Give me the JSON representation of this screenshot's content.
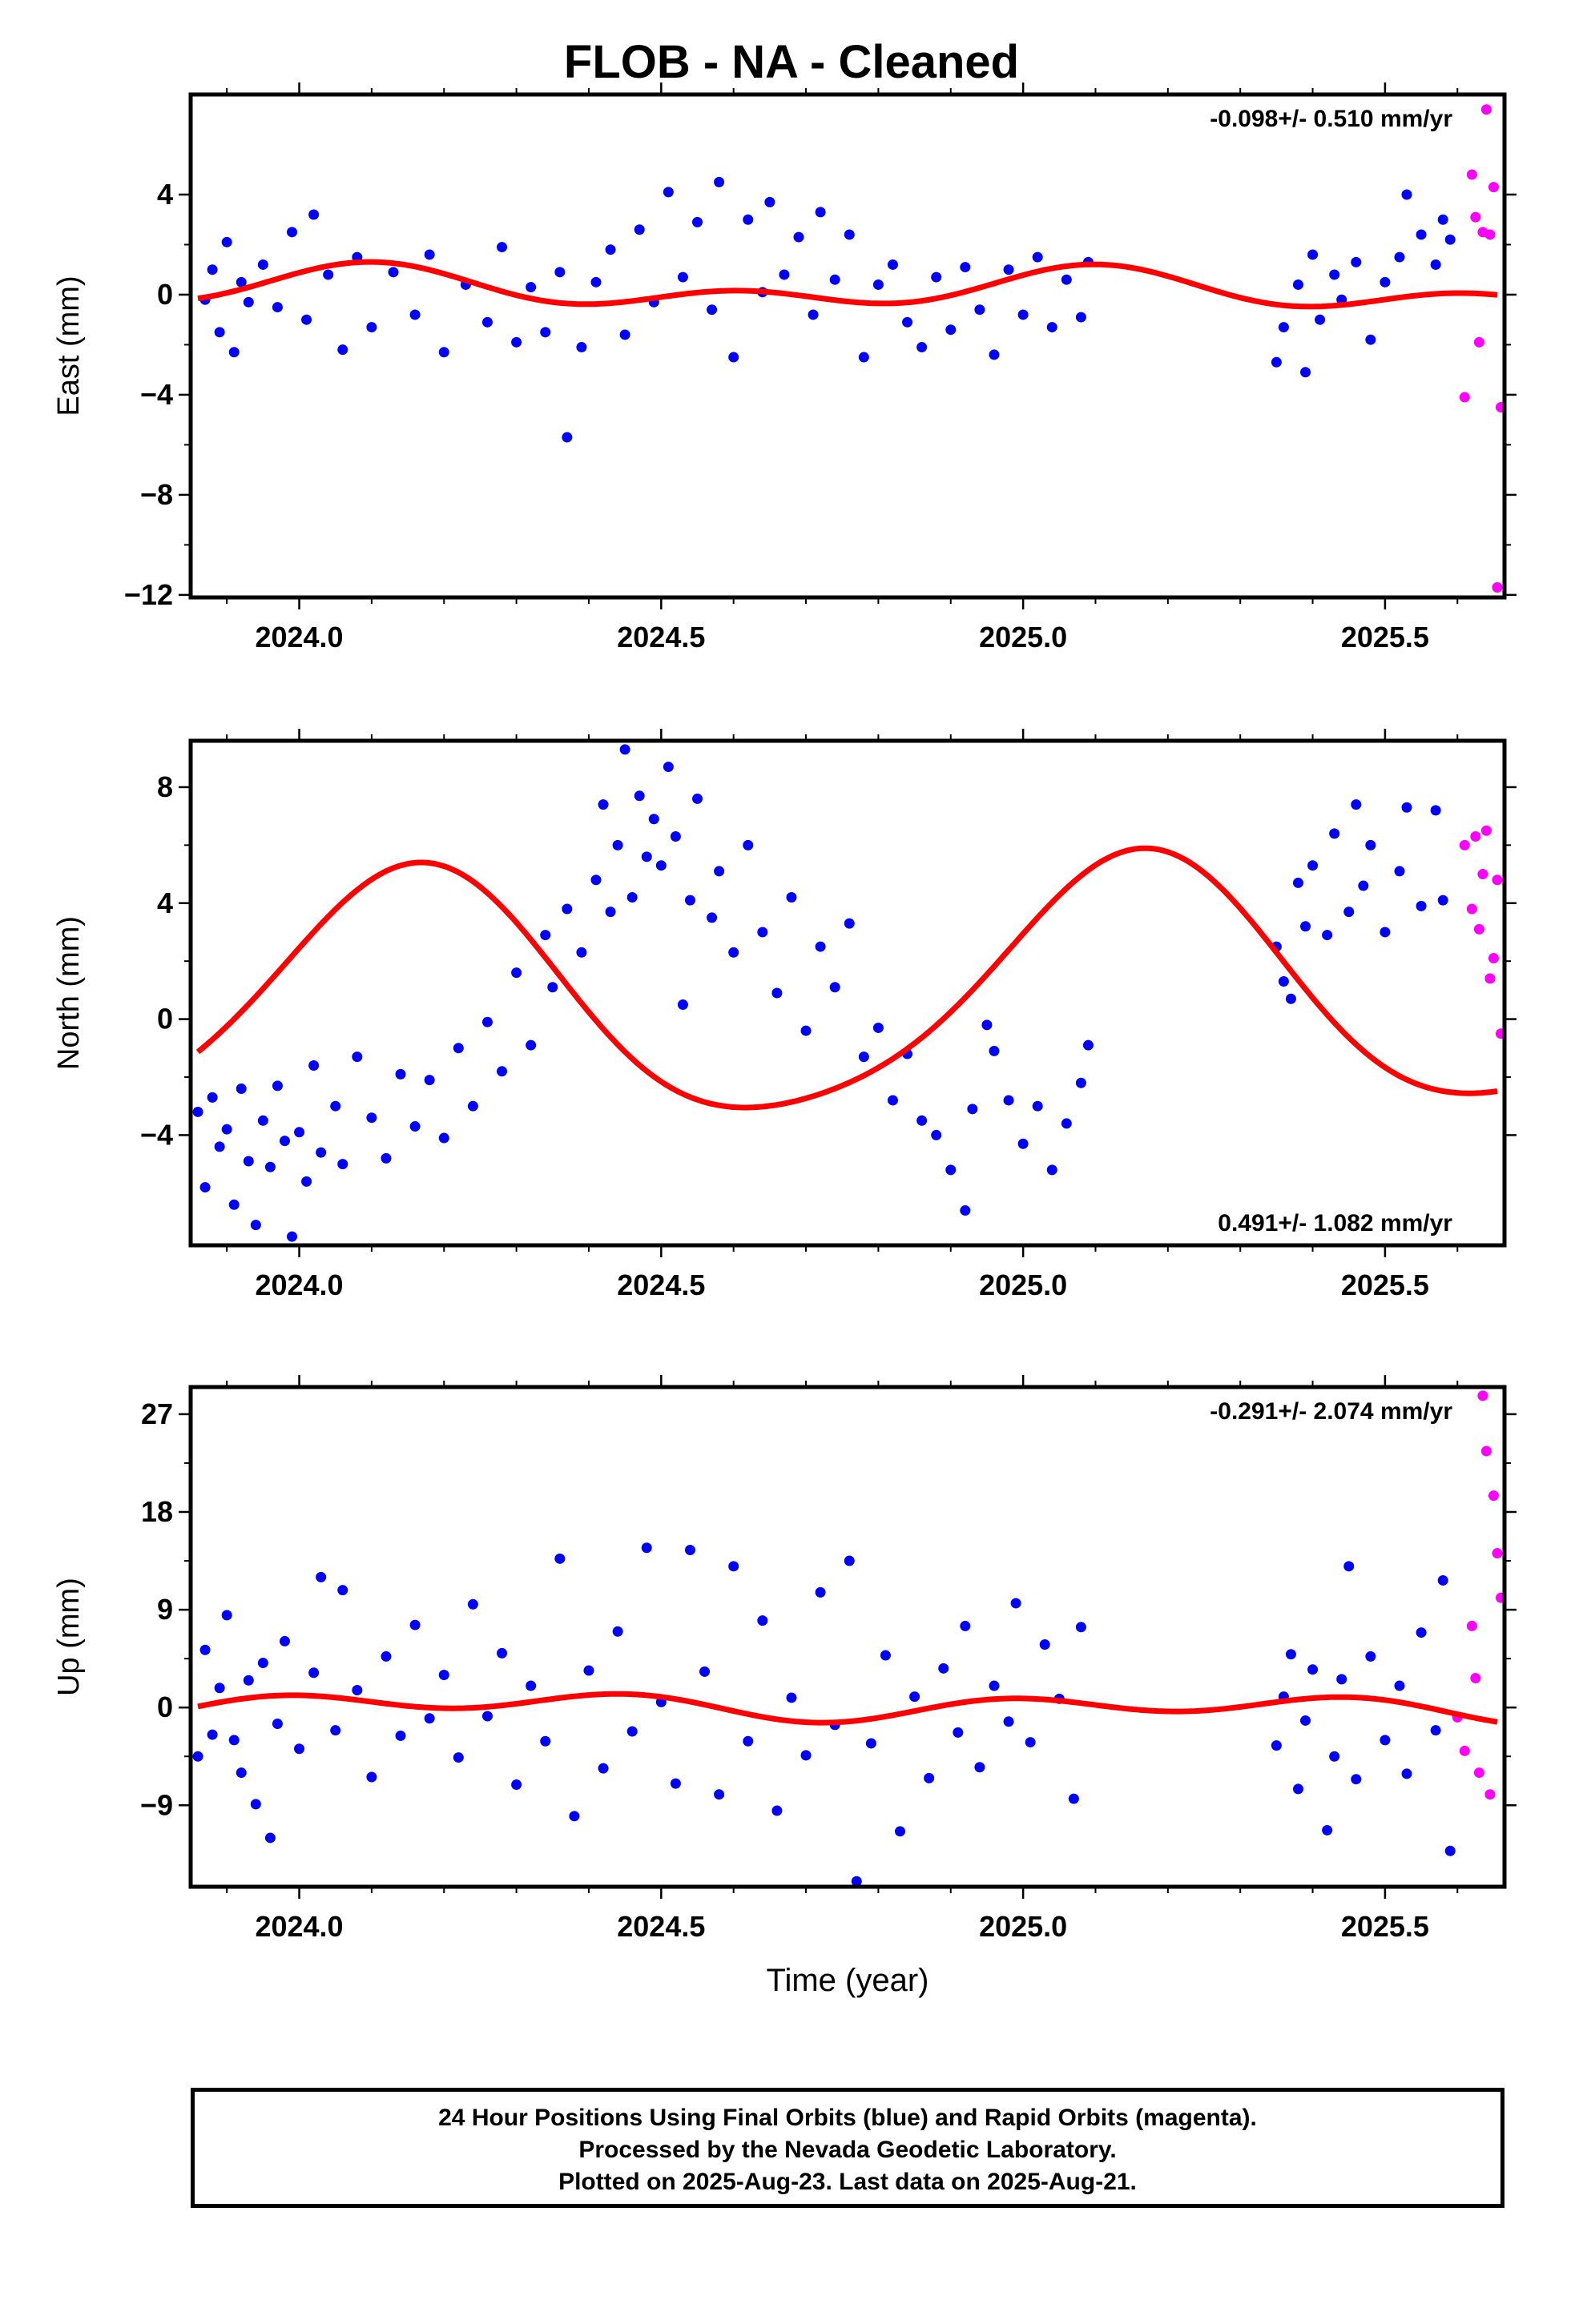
{
  "title": "FLOB  - NA - Cleaned",
  "colors": {
    "final": "#0000ff",
    "rapid": "#ff00ff",
    "fit": "#ff0000"
  },
  "chart_data": [
    {
      "type": "scatter",
      "ylabel": "East (mm)",
      "xlabel": "",
      "rate": "-0.098+/- 0.510 mm/yr",
      "rate_position": "top-right",
      "xlim": [
        2023.85,
        2025.665
      ],
      "ylim": [
        -12.1,
        8.0
      ],
      "xticks": [
        2024.0,
        2024.5,
        2025.0,
        2025.5
      ],
      "xtick_labels": [
        "2024.0",
        "2024.5",
        "2025.0",
        "2025.5"
      ],
      "yticks": [
        4,
        0,
        -4,
        -8,
        -12
      ],
      "ytick_labels": [
        "4",
        "0",
        "−4",
        "−8",
        "−12"
      ],
      "fit": {
        "offset": 0.2,
        "amplitudes": [
          0.55,
          0.5
        ],
        "phases": [
          1.0,
          0.3
        ],
        "trend": -0.098
      },
      "final_orbits": [
        [
          2023.87,
          -0.2
        ],
        [
          2023.88,
          1.0
        ],
        [
          2023.89,
          -1.5
        ],
        [
          2023.9,
          2.1
        ],
        [
          2023.91,
          -2.3
        ],
        [
          2023.92,
          0.5
        ],
        [
          2023.93,
          -0.3
        ],
        [
          2023.95,
          1.2
        ],
        [
          2023.97,
          -0.5
        ],
        [
          2023.99,
          2.5
        ],
        [
          2024.01,
          -1.0
        ],
        [
          2024.02,
          3.2
        ],
        [
          2024.04,
          0.8
        ],
        [
          2024.06,
          -2.2
        ],
        [
          2024.08,
          1.5
        ],
        [
          2024.1,
          -1.3
        ],
        [
          2024.13,
          0.9
        ],
        [
          2024.16,
          -0.8
        ],
        [
          2024.18,
          1.6
        ],
        [
          2024.2,
          -2.3
        ],
        [
          2024.23,
          0.4
        ],
        [
          2024.26,
          -1.1
        ],
        [
          2024.28,
          1.9
        ],
        [
          2024.3,
          -1.9
        ],
        [
          2024.32,
          0.3
        ],
        [
          2024.34,
          -1.5
        ],
        [
          2024.36,
          0.9
        ],
        [
          2024.37,
          -5.7
        ],
        [
          2024.39,
          -2.1
        ],
        [
          2024.41,
          0.5
        ],
        [
          2024.43,
          1.8
        ],
        [
          2024.45,
          -1.6
        ],
        [
          2024.47,
          2.6
        ],
        [
          2024.49,
          -0.3
        ],
        [
          2024.51,
          4.1
        ],
        [
          2024.53,
          0.7
        ],
        [
          2024.55,
          2.9
        ],
        [
          2024.57,
          -0.6
        ],
        [
          2024.58,
          4.5
        ],
        [
          2024.6,
          -2.5
        ],
        [
          2024.62,
          3.0
        ],
        [
          2024.64,
          0.1
        ],
        [
          2024.65,
          3.7
        ],
        [
          2024.67,
          0.8
        ],
        [
          2024.69,
          2.3
        ],
        [
          2024.71,
          -0.8
        ],
        [
          2024.72,
          3.3
        ],
        [
          2024.74,
          0.6
        ],
        [
          2024.76,
          2.4
        ],
        [
          2024.78,
          -2.5
        ],
        [
          2024.8,
          0.4
        ],
        [
          2024.82,
          1.2
        ],
        [
          2024.84,
          -1.1
        ],
        [
          2024.86,
          -2.1
        ],
        [
          2024.88,
          0.7
        ],
        [
          2024.9,
          -1.4
        ],
        [
          2024.92,
          1.1
        ],
        [
          2024.94,
          -0.6
        ],
        [
          2024.96,
          -2.4
        ],
        [
          2024.98,
          1.0
        ],
        [
          2025.0,
          -0.8
        ],
        [
          2025.02,
          1.5
        ],
        [
          2025.04,
          -1.3
        ],
        [
          2025.06,
          0.6
        ],
        [
          2025.08,
          -0.9
        ],
        [
          2025.09,
          1.3
        ],
        [
          2025.35,
          -2.7
        ],
        [
          2025.36,
          -1.3
        ],
        [
          2025.38,
          0.4
        ],
        [
          2025.39,
          -3.1
        ],
        [
          2025.4,
          1.6
        ],
        [
          2025.41,
          -1.0
        ],
        [
          2025.43,
          0.8
        ],
        [
          2025.44,
          -0.2
        ],
        [
          2025.46,
          1.3
        ],
        [
          2025.48,
          -1.8
        ],
        [
          2025.5,
          0.5
        ],
        [
          2025.52,
          1.5
        ],
        [
          2025.53,
          4.0
        ],
        [
          2025.55,
          2.4
        ],
        [
          2025.57,
          1.2
        ],
        [
          2025.58,
          3.0
        ],
        [
          2025.59,
          2.2
        ]
      ],
      "rapid_orbits": [
        [
          2025.61,
          -4.1
        ],
        [
          2025.62,
          4.8
        ],
        [
          2025.625,
          3.1
        ],
        [
          2025.63,
          -1.9
        ],
        [
          2025.635,
          2.5
        ],
        [
          2025.64,
          7.4
        ],
        [
          2025.645,
          2.4
        ],
        [
          2025.65,
          4.3
        ],
        [
          2025.655,
          -11.7
        ],
        [
          2025.66,
          -4.5
        ]
      ]
    },
    {
      "type": "scatter",
      "ylabel": "North (mm)",
      "xlabel": "",
      "rate": "0.491+/- 1.082 mm/yr",
      "rate_position": "bottom-right",
      "xlim": [
        2023.85,
        2025.665
      ],
      "ylim": [
        -7.8,
        9.6
      ],
      "xticks": [
        2024.0,
        2024.5,
        2025.0,
        2025.5
      ],
      "xtick_labels": [
        "2024.0",
        "2024.5",
        "2025.0",
        "2025.5"
      ],
      "yticks": [
        8,
        4,
        0,
        -4
      ],
      "ytick_labels": [
        "8",
        "4",
        "0",
        "−4"
      ],
      "fit": {
        "offset": 0.8,
        "amplitudes": [
          4.3,
          0.6
        ],
        "phases": [
          0.6,
          -0.8
        ],
        "trend": 0.491
      },
      "final_orbits": [
        [
          2023.86,
          -3.2
        ],
        [
          2023.87,
          -5.8
        ],
        [
          2023.88,
          -2.7
        ],
        [
          2023.89,
          -4.4
        ],
        [
          2023.9,
          -3.8
        ],
        [
          2023.91,
          -6.4
        ],
        [
          2023.92,
          -2.4
        ],
        [
          2023.93,
          -4.9
        ],
        [
          2023.94,
          -7.1
        ],
        [
          2023.95,
          -3.5
        ],
        [
          2023.96,
          -5.1
        ],
        [
          2023.97,
          -2.3
        ],
        [
          2023.98,
          -4.2
        ],
        [
          2023.99,
          -7.5
        ],
        [
          2024.0,
          -3.9
        ],
        [
          2024.01,
          -5.6
        ],
        [
          2024.02,
          -1.6
        ],
        [
          2024.03,
          -4.6
        ],
        [
          2024.05,
          -3.0
        ],
        [
          2024.06,
          -5.0
        ],
        [
          2024.08,
          -1.3
        ],
        [
          2024.1,
          -3.4
        ],
        [
          2024.12,
          -4.8
        ],
        [
          2024.14,
          -1.9
        ],
        [
          2024.16,
          -3.7
        ],
        [
          2024.18,
          -2.1
        ],
        [
          2024.2,
          -4.1
        ],
        [
          2024.22,
          -1.0
        ],
        [
          2024.24,
          -3.0
        ],
        [
          2024.26,
          -0.1
        ],
        [
          2024.28,
          -1.8
        ],
        [
          2024.3,
          1.6
        ],
        [
          2024.32,
          -0.9
        ],
        [
          2024.34,
          2.9
        ],
        [
          2024.35,
          1.1
        ],
        [
          2024.37,
          3.8
        ],
        [
          2024.39,
          2.3
        ],
        [
          2024.41,
          4.8
        ],
        [
          2024.42,
          7.4
        ],
        [
          2024.43,
          3.7
        ],
        [
          2024.44,
          6.0
        ],
        [
          2024.45,
          9.3
        ],
        [
          2024.46,
          4.2
        ],
        [
          2024.47,
          7.7
        ],
        [
          2024.48,
          5.6
        ],
        [
          2024.49,
          6.9
        ],
        [
          2024.5,
          5.3
        ],
        [
          2024.51,
          8.7
        ],
        [
          2024.52,
          6.3
        ],
        [
          2024.53,
          0.5
        ],
        [
          2024.54,
          4.1
        ],
        [
          2024.55,
          7.6
        ],
        [
          2024.57,
          3.5
        ],
        [
          2024.58,
          5.1
        ],
        [
          2024.6,
          2.3
        ],
        [
          2024.62,
          6.0
        ],
        [
          2024.64,
          3.0
        ],
        [
          2024.66,
          0.9
        ],
        [
          2024.68,
          4.2
        ],
        [
          2024.7,
          -0.4
        ],
        [
          2024.72,
          2.5
        ],
        [
          2024.74,
          1.1
        ],
        [
          2024.76,
          3.3
        ],
        [
          2024.78,
          -1.3
        ],
        [
          2024.8,
          -0.3
        ],
        [
          2024.82,
          -2.8
        ],
        [
          2024.84,
          -1.2
        ],
        [
          2024.86,
          -3.5
        ],
        [
          2024.88,
          -4.0
        ],
        [
          2024.9,
          -5.2
        ],
        [
          2024.92,
          -6.6
        ],
        [
          2024.93,
          -3.1
        ],
        [
          2024.95,
          -0.2
        ],
        [
          2024.96,
          -1.1
        ],
        [
          2024.98,
          -2.8
        ],
        [
          2025.0,
          -4.3
        ],
        [
          2025.02,
          -3.0
        ],
        [
          2025.04,
          -5.2
        ],
        [
          2025.06,
          -3.6
        ],
        [
          2025.08,
          -2.2
        ],
        [
          2025.09,
          -0.9
        ],
        [
          2025.35,
          2.5
        ],
        [
          2025.36,
          1.3
        ],
        [
          2025.37,
          0.7
        ],
        [
          2025.38,
          4.7
        ],
        [
          2025.39,
          3.2
        ],
        [
          2025.4,
          5.3
        ],
        [
          2025.42,
          2.9
        ],
        [
          2025.43,
          6.4
        ],
        [
          2025.45,
          3.7
        ],
        [
          2025.46,
          7.4
        ],
        [
          2025.47,
          4.6
        ],
        [
          2025.48,
          6.0
        ],
        [
          2025.5,
          3.0
        ],
        [
          2025.52,
          5.1
        ],
        [
          2025.53,
          7.3
        ],
        [
          2025.55,
          3.9
        ],
        [
          2025.57,
          7.2
        ],
        [
          2025.58,
          4.1
        ]
      ],
      "rapid_orbits": [
        [
          2025.61,
          6.0
        ],
        [
          2025.62,
          3.8
        ],
        [
          2025.625,
          6.3
        ],
        [
          2025.63,
          3.1
        ],
        [
          2025.635,
          5.0
        ],
        [
          2025.64,
          6.5
        ],
        [
          2025.645,
          1.4
        ],
        [
          2025.65,
          2.1
        ],
        [
          2025.655,
          4.8
        ],
        [
          2025.66,
          -0.5
        ]
      ]
    },
    {
      "type": "scatter",
      "ylabel": "Up (mm)",
      "xlabel": "Time (year)",
      "rate": "-0.291+/- 2.074 mm/yr",
      "rate_position": "top-right",
      "xlim": [
        2023.85,
        2025.665
      ],
      "ylim": [
        -16.5,
        29.5
      ],
      "xticks": [
        2024.0,
        2024.5,
        2025.0,
        2025.5
      ],
      "xtick_labels": [
        "2024.0",
        "2024.5",
        "2025.0",
        "2025.5"
      ],
      "yticks": [
        27,
        18,
        9,
        0,
        -9
      ],
      "ytick_labels": [
        "27",
        "18",
        "9",
        "0",
        "−9"
      ],
      "fit": {
        "offset": 0.1,
        "amplitudes": [
          0.6,
          0.9
        ],
        "phases": [
          0.0,
          2.0
        ],
        "trend": -0.291
      },
      "final_orbits": [
        [
          2023.86,
          -4.5
        ],
        [
          2023.87,
          5.3
        ],
        [
          2023.88,
          -2.5
        ],
        [
          2023.89,
          1.8
        ],
        [
          2023.9,
          8.5
        ],
        [
          2023.91,
          -3.0
        ],
        [
          2023.92,
          -6.0
        ],
        [
          2023.93,
          2.5
        ],
        [
          2023.94,
          -8.9
        ],
        [
          2023.95,
          4.1
        ],
        [
          2023.96,
          -12.0
        ],
        [
          2023.97,
          -1.5
        ],
        [
          2023.98,
          6.1
        ],
        [
          2024.0,
          -3.8
        ],
        [
          2024.02,
          3.2
        ],
        [
          2024.03,
          12.0
        ],
        [
          2024.05,
          -2.1
        ],
        [
          2024.06,
          10.8
        ],
        [
          2024.08,
          1.6
        ],
        [
          2024.1,
          -6.4
        ],
        [
          2024.12,
          4.7
        ],
        [
          2024.14,
          -2.6
        ],
        [
          2024.16,
          7.6
        ],
        [
          2024.18,
          -1.0
        ],
        [
          2024.2,
          3.0
        ],
        [
          2024.22,
          -4.6
        ],
        [
          2024.24,
          9.5
        ],
        [
          2024.26,
          -0.8
        ],
        [
          2024.28,
          5.0
        ],
        [
          2024.3,
          -7.1
        ],
        [
          2024.32,
          2.0
        ],
        [
          2024.34,
          -3.1
        ],
        [
          2024.36,
          13.7
        ],
        [
          2024.38,
          -10.0
        ],
        [
          2024.4,
          3.4
        ],
        [
          2024.42,
          -5.6
        ],
        [
          2024.44,
          7.0
        ],
        [
          2024.46,
          -2.2
        ],
        [
          2024.48,
          14.7
        ],
        [
          2024.5,
          0.5
        ],
        [
          2024.52,
          -7.0
        ],
        [
          2024.54,
          14.5
        ],
        [
          2024.56,
          3.3
        ],
        [
          2024.58,
          -8.0
        ],
        [
          2024.6,
          13.0
        ],
        [
          2024.62,
          -3.1
        ],
        [
          2024.64,
          8.0
        ],
        [
          2024.66,
          -9.5
        ],
        [
          2024.68,
          0.9
        ],
        [
          2024.7,
          -4.4
        ],
        [
          2024.72,
          10.6
        ],
        [
          2024.74,
          -1.6
        ],
        [
          2024.76,
          13.5
        ],
        [
          2024.77,
          -16.0
        ],
        [
          2024.79,
          -3.3
        ],
        [
          2024.81,
          4.8
        ],
        [
          2024.83,
          -11.4
        ],
        [
          2024.85,
          1.0
        ],
        [
          2024.87,
          -6.5
        ],
        [
          2024.89,
          3.6
        ],
        [
          2024.91,
          -2.3
        ],
        [
          2024.92,
          7.5
        ],
        [
          2024.94,
          -5.5
        ],
        [
          2024.96,
          2.0
        ],
        [
          2024.98,
          -1.3
        ],
        [
          2024.99,
          9.6
        ],
        [
          2025.01,
          -3.2
        ],
        [
          2025.03,
          5.8
        ],
        [
          2025.05,
          0.8
        ],
        [
          2025.07,
          -8.4
        ],
        [
          2025.08,
          7.4
        ],
        [
          2025.35,
          -3.5
        ],
        [
          2025.36,
          1.0
        ],
        [
          2025.37,
          4.9
        ],
        [
          2025.38,
          -7.5
        ],
        [
          2025.39,
          -1.2
        ],
        [
          2025.4,
          3.5
        ],
        [
          2025.42,
          -11.3
        ],
        [
          2025.43,
          -4.5
        ],
        [
          2025.44,
          2.6
        ],
        [
          2025.45,
          13.0
        ],
        [
          2025.46,
          -6.6
        ],
        [
          2025.48,
          4.7
        ],
        [
          2025.5,
          -3.0
        ],
        [
          2025.52,
          2.0
        ],
        [
          2025.53,
          -6.1
        ],
        [
          2025.55,
          6.9
        ],
        [
          2025.57,
          -2.1
        ],
        [
          2025.58,
          11.7
        ],
        [
          2025.59,
          -13.2
        ]
      ],
      "rapid_orbits": [
        [
          2025.6,
          -0.9
        ],
        [
          2025.61,
          -4.0
        ],
        [
          2025.62,
          7.5
        ],
        [
          2025.625,
          2.7
        ],
        [
          2025.63,
          -6.0
        ],
        [
          2025.635,
          28.7
        ],
        [
          2025.64,
          23.6
        ],
        [
          2025.645,
          -8.0
        ],
        [
          2025.65,
          19.5
        ],
        [
          2025.655,
          14.2
        ],
        [
          2025.66,
          10.1
        ]
      ]
    }
  ],
  "footer": {
    "line1": "24 Hour Positions Using Final Orbits (blue) and Rapid Orbits (magenta).",
    "line2": "Processed by the Nevada Geodetic Laboratory.",
    "line3": "Plotted on 2025-Aug-23. Last data on 2025-Aug-21."
  }
}
